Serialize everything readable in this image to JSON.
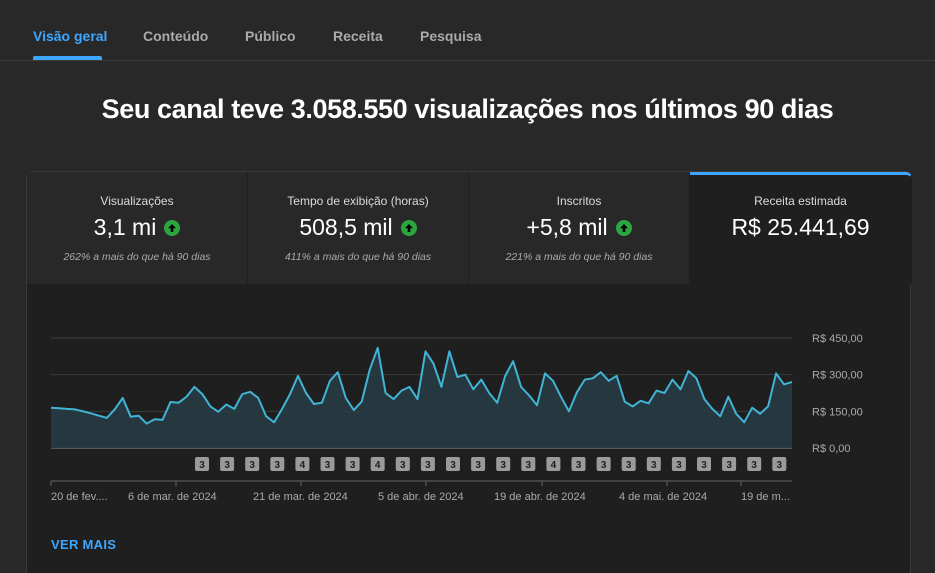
{
  "tabs": [
    "Visão geral",
    "Conteúdo",
    "Público",
    "Receita",
    "Pesquisa"
  ],
  "headline": "Seu canal teve 3.058.550 visualizações nos últimos 90 dias",
  "kpis": [
    {
      "label": "Visualizações",
      "value": "3,1 mi",
      "trend": "up",
      "sub": "262% a mais do que há 90 dias"
    },
    {
      "label": "Tempo de exibição (horas)",
      "value": "508,5 mil",
      "trend": "up",
      "sub": "411% a mais do que há 90 dias"
    },
    {
      "label": "Inscritos",
      "value": "+5,8 mil",
      "trend": "up",
      "sub": "221% a mais do que há 90 dias"
    },
    {
      "label": "Receita estimada",
      "value": "R$ 25.441,69"
    }
  ],
  "colors": {
    "accent": "#3ea6ff",
    "line": "#41b4d6",
    "up": "#2ba640"
  },
  "chart_data": {
    "type": "area",
    "ylabels": [
      "R$ 450,00",
      "R$ 300,00",
      "R$ 150,00",
      "R$ 0,00"
    ],
    "yticks": [
      450,
      300,
      150,
      0
    ],
    "ylim": [
      0,
      450
    ],
    "xlabels": [
      "20 de fev....",
      "6 de mar. de 2024",
      "21 de mar. de 2024",
      "5 de abr. de 2024",
      "19 de abr. de 2024",
      "4 de mai. de 2024",
      "19 de m..."
    ],
    "values": [
      165,
      163,
      160,
      158,
      150,
      142,
      132,
      123,
      158,
      205,
      128,
      132,
      100,
      118,
      115,
      188,
      185,
      210,
      250,
      220,
      170,
      148,
      178,
      160,
      220,
      230,
      205,
      130,
      105,
      160,
      220,
      295,
      225,
      180,
      185,
      275,
      310,
      205,
      155,
      190,
      320,
      410,
      225,
      200,
      235,
      250,
      200,
      395,
      345,
      250,
      395,
      290,
      300,
      240,
      280,
      225,
      185,
      295,
      355,
      250,
      215,
      175,
      305,
      275,
      210,
      150,
      228,
      280,
      285,
      310,
      275,
      295,
      190,
      170,
      193,
      183,
      235,
      225,
      280,
      240,
      315,
      285,
      200,
      160,
      130,
      210,
      140,
      105,
      165,
      140,
      170,
      305,
      260,
      270
    ],
    "annotations": [
      "3",
      "3",
      "3",
      "3",
      "4",
      "3",
      "3",
      "4",
      "3",
      "3",
      "3",
      "3",
      "3",
      "3",
      "4",
      "3",
      "3",
      "3",
      "3",
      "3",
      "3",
      "3",
      "3",
      "3"
    ],
    "grid": true
  },
  "see_more": "VER MAIS"
}
